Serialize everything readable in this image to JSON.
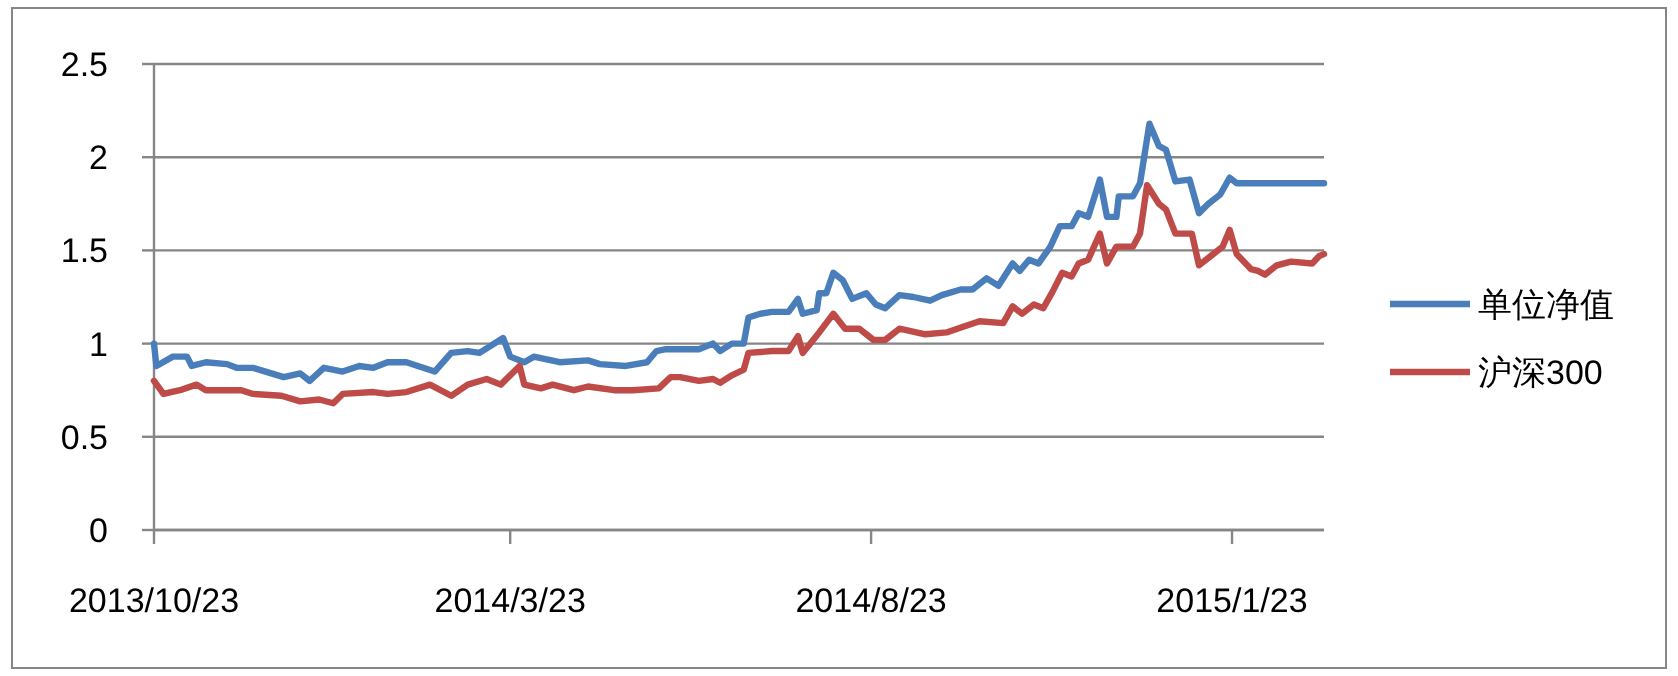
{
  "chart_data": {
    "type": "line",
    "xlim": [
      "2013-10-23",
      "2015-03-03"
    ],
    "xticks": [
      {
        "value": "2013-10-23",
        "label": "2013/10/23"
      },
      {
        "value": "2014-03-23",
        "label": "2014/3/23"
      },
      {
        "value": "2014-08-23",
        "label": "2014/8/23"
      },
      {
        "value": "2015-01-23",
        "label": "2015/1/23"
      }
    ],
    "ylim": [
      0,
      2.5
    ],
    "yticks": [
      0,
      0.5,
      1,
      1.5,
      2,
      2.5
    ],
    "grid": "y",
    "legend": "right",
    "line_style": "solid",
    "series": [
      {
        "name": "单位净值",
        "color": "#4a7ebb",
        "x": [
          "2013-10-23",
          "2013-10-24",
          "2013-10-31",
          "2013-11-06",
          "2013-11-08",
          "2013-11-14",
          "2013-11-23",
          "2013-11-27",
          "2013-12-04",
          "2013-12-17",
          "2013-12-24",
          "2013-12-28",
          "2014-01-03",
          "2014-01-11",
          "2014-01-18",
          "2014-01-24",
          "2014-01-30",
          "2014-02-07",
          "2014-02-19",
          "2014-02-26",
          "2014-03-05",
          "2014-03-10",
          "2014-03-20",
          "2014-03-23",
          "2014-03-29",
          "2014-04-02",
          "2014-04-13",
          "2014-04-25",
          "2014-04-30",
          "2014-05-11",
          "2014-05-20",
          "2014-05-24",
          "2014-05-28",
          "2014-06-03",
          "2014-06-11",
          "2014-06-17",
          "2014-06-20",
          "2014-06-25",
          "2014-06-30",
          "2014-07-02",
          "2014-07-07",
          "2014-07-12",
          "2014-07-19",
          "2014-07-23",
          "2014-07-25",
          "2014-07-31",
          "2014-08-01",
          "2014-08-04",
          "2014-08-07",
          "2014-08-11",
          "2014-08-15",
          "2014-08-21",
          "2014-08-25",
          "2014-08-29",
          "2014-09-04",
          "2014-09-10",
          "2014-09-17",
          "2014-09-22",
          "2014-09-30",
          "2014-10-05",
          "2014-10-11",
          "2014-10-16",
          "2014-10-22",
          "2014-10-25",
          "2014-10-29",
          "2014-11-02",
          "2014-11-07",
          "2014-11-11",
          "2014-11-16",
          "2014-11-19",
          "2014-11-23",
          "2014-11-28",
          "2014-12-01",
          "2014-12-05",
          "2014-12-06",
          "2014-12-12",
          "2014-12-15",
          "2014-12-19",
          "2014-12-23",
          "2014-12-26",
          "2014-12-30",
          "2015-01-05",
          "2015-01-09",
          "2015-01-13",
          "2015-01-18",
          "2015-01-22",
          "2015-01-25",
          "2015-03-03"
        ],
        "values": [
          1.0,
          0.88,
          0.93,
          0.93,
          0.88,
          0.9,
          0.89,
          0.87,
          0.87,
          0.82,
          0.84,
          0.8,
          0.87,
          0.85,
          0.88,
          0.87,
          0.9,
          0.9,
          0.85,
          0.95,
          0.96,
          0.95,
          1.03,
          0.93,
          0.9,
          0.93,
          0.9,
          0.91,
          0.89,
          0.88,
          0.9,
          0.96,
          0.97,
          0.97,
          0.97,
          1.0,
          0.96,
          1.0,
          1.0,
          1.14,
          1.16,
          1.17,
          1.17,
          1.24,
          1.16,
          1.18,
          1.27,
          1.27,
          1.38,
          1.34,
          1.24,
          1.27,
          1.21,
          1.19,
          1.26,
          1.25,
          1.23,
          1.26,
          1.29,
          1.29,
          1.35,
          1.31,
          1.43,
          1.39,
          1.45,
          1.43,
          1.52,
          1.63,
          1.63,
          1.7,
          1.68,
          1.88,
          1.68,
          1.68,
          1.79,
          1.79,
          1.86,
          2.18,
          2.06,
          2.04,
          1.87,
          1.88,
          1.7,
          1.75,
          1.8,
          1.89,
          1.86,
          1.86
        ]
      },
      {
        "name": "沪深300",
        "color": "#be4b48",
        "x": [
          "2013-10-23",
          "2013-10-27",
          "2013-11-03",
          "2013-11-10",
          "2013-11-14",
          "2013-11-29",
          "2013-12-04",
          "2013-12-16",
          "2013-12-24",
          "2014-01-01",
          "2014-01-07",
          "2014-01-11",
          "2014-01-24",
          "2014-01-30",
          "2014-02-07",
          "2014-02-17",
          "2014-02-26",
          "2014-03-05",
          "2014-03-13",
          "2014-03-19",
          "2014-03-27",
          "2014-03-29",
          "2014-04-05",
          "2014-04-10",
          "2014-04-19",
          "2014-04-25",
          "2014-05-06",
          "2014-05-14",
          "2014-05-25",
          "2014-05-30",
          "2014-06-03",
          "2014-06-11",
          "2014-06-17",
          "2014-06-20",
          "2014-06-25",
          "2014-06-30",
          "2014-07-02",
          "2014-07-12",
          "2014-07-19",
          "2014-07-23",
          "2014-07-25",
          "2014-08-01",
          "2014-08-07",
          "2014-08-12",
          "2014-08-18",
          "2014-08-24",
          "2014-08-29",
          "2014-09-04",
          "2014-09-15",
          "2014-09-24",
          "2014-10-01",
          "2014-10-08",
          "2014-10-18",
          "2014-10-22",
          "2014-10-26",
          "2014-10-31",
          "2014-11-04",
          "2014-11-08",
          "2014-11-12",
          "2014-11-16",
          "2014-11-19",
          "2014-11-23",
          "2014-11-28",
          "2014-12-01",
          "2014-12-05",
          "2014-12-12",
          "2014-12-15",
          "2014-12-18",
          "2014-12-23",
          "2014-12-26",
          "2014-12-30",
          "2015-01-06",
          "2015-01-09",
          "2015-01-15",
          "2015-01-19",
          "2015-01-22",
          "2015-01-25",
          "2015-01-31",
          "2015-02-03",
          "2015-02-06",
          "2015-02-11",
          "2015-02-17",
          "2015-02-26",
          "2015-03-01",
          "2015-03-03"
        ],
        "values": [
          0.8,
          0.73,
          0.75,
          0.78,
          0.75,
          0.75,
          0.73,
          0.72,
          0.69,
          0.7,
          0.68,
          0.73,
          0.74,
          0.73,
          0.74,
          0.78,
          0.72,
          0.78,
          0.81,
          0.78,
          0.88,
          0.78,
          0.76,
          0.78,
          0.75,
          0.77,
          0.75,
          0.75,
          0.76,
          0.82,
          0.82,
          0.8,
          0.81,
          0.79,
          0.83,
          0.86,
          0.95,
          0.96,
          0.96,
          1.04,
          0.95,
          1.06,
          1.16,
          1.08,
          1.08,
          1.02,
          1.02,
          1.08,
          1.05,
          1.06,
          1.09,
          1.12,
          1.11,
          1.2,
          1.16,
          1.21,
          1.19,
          1.28,
          1.38,
          1.36,
          1.43,
          1.45,
          1.59,
          1.43,
          1.52,
          1.52,
          1.59,
          1.85,
          1.75,
          1.72,
          1.59,
          1.59,
          1.42,
          1.48,
          1.52,
          1.61,
          1.48,
          1.4,
          1.39,
          1.37,
          1.42,
          1.44,
          1.43,
          1.47,
          1.48
        ]
      }
    ]
  }
}
